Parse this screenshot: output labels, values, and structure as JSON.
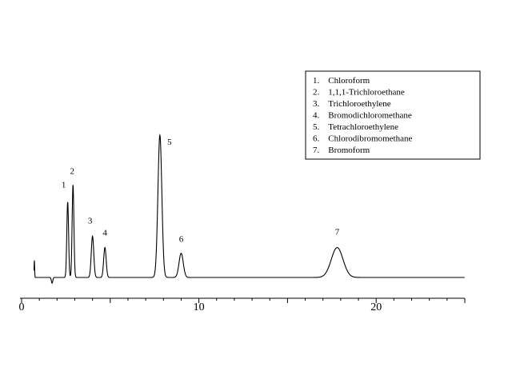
{
  "chart_data": {
    "type": "line",
    "title": "",
    "xlabel": "",
    "ylabel": "",
    "xlim": [
      0,
      25
    ],
    "x_ticks": [
      0,
      10,
      20
    ],
    "x_tick_labels": [
      "0",
      "10",
      "20"
    ],
    "baseline": 0,
    "peaks": [
      {
        "label": "1",
        "x": 2.6,
        "height": 0.53,
        "width": 0.05
      },
      {
        "label": "2",
        "x": 2.9,
        "height": 0.65,
        "width": 0.05
      },
      {
        "label": "3",
        "x": 4.0,
        "height": 0.29,
        "width": 0.07
      },
      {
        "label": "4",
        "x": 4.7,
        "height": 0.21,
        "width": 0.07
      },
      {
        "label": "5",
        "x": 7.8,
        "height": 1.0,
        "width": 0.11
      },
      {
        "label": "6",
        "x": 9.0,
        "height": 0.17,
        "width": 0.12
      },
      {
        "label": "7",
        "x": 17.8,
        "height": 0.21,
        "width": 0.33
      }
    ],
    "legend": {
      "placement": "top-right",
      "entries": [
        "1.    Chloroform",
        "2.    1,1,1-Trichloroethane",
        "3.    Trichloroethylene",
        "4.    Bromodichloromethane",
        "5.    Tetrachloroethylene",
        "6.    Chlorodibromomethane",
        "7.    Bromoform"
      ]
    },
    "grid": false
  }
}
